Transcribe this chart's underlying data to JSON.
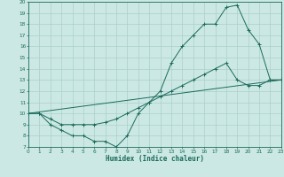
{
  "xlabel": "Humidex (Indice chaleur)",
  "bg_color": "#cce8e5",
  "grid_color": "#aacfcc",
  "line_color": "#1a6b5a",
  "ylim": [
    7,
    20
  ],
  "xlim": [
    0,
    23
  ],
  "yticks": [
    7,
    8,
    9,
    10,
    11,
    12,
    13,
    14,
    15,
    16,
    17,
    18,
    19,
    20
  ],
  "xticks": [
    0,
    1,
    2,
    3,
    4,
    5,
    6,
    7,
    8,
    9,
    10,
    11,
    12,
    13,
    14,
    15,
    16,
    17,
    18,
    19,
    20,
    21,
    22,
    23
  ],
  "line1_x": [
    0,
    1,
    2,
    3,
    4,
    5,
    6,
    7,
    8,
    9,
    10,
    11,
    12,
    13,
    14,
    15,
    16,
    17,
    18,
    19,
    20,
    21,
    22,
    23
  ],
  "line1_y": [
    10,
    10,
    9,
    8.5,
    8,
    8,
    7.5,
    7.5,
    7,
    8,
    10,
    11,
    12,
    14.5,
    16,
    17,
    18,
    18,
    19.5,
    19.7,
    17.5,
    16.2,
    13,
    13
  ],
  "line2_x": [
    0,
    23
  ],
  "line2_y": [
    10,
    13
  ],
  "line3_x": [
    0,
    1,
    2,
    3,
    4,
    5,
    6,
    7,
    8,
    9,
    10,
    11,
    12,
    13,
    14,
    15,
    16,
    17,
    18,
    19,
    20,
    21,
    22,
    23
  ],
  "line3_y": [
    10,
    10,
    9.5,
    9,
    9,
    9,
    9,
    9.2,
    9.5,
    10,
    10.5,
    11,
    11.5,
    12,
    12.5,
    13,
    13.5,
    14,
    14.5,
    13,
    12.5,
    12.5,
    13,
    13
  ]
}
